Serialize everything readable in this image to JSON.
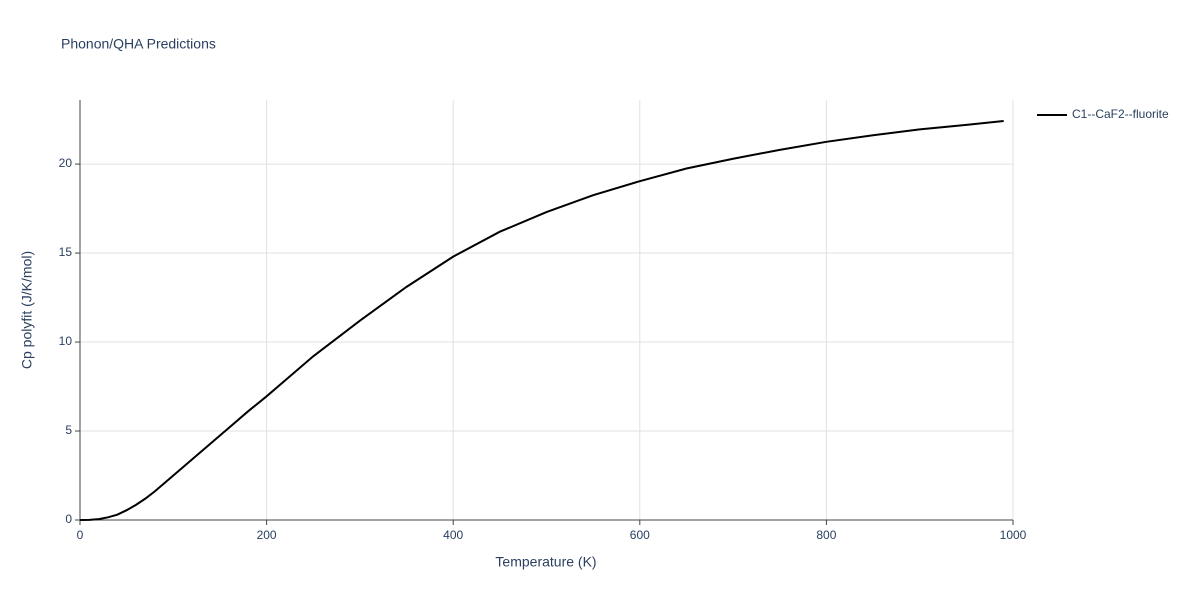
{
  "chart_data": {
    "type": "line",
    "title": "Phonon/QHA Predictions",
    "x_label": "Temperature (K)",
    "y_label": "Cp polyfit (J/K/mol)",
    "x": [
      0,
      10,
      20,
      30,
      40,
      50,
      60,
      70,
      80,
      90,
      100,
      120,
      140,
      160,
      180,
      200,
      250,
      300,
      350,
      400,
      450,
      500,
      550,
      600,
      650,
      700,
      750,
      800,
      850,
      900,
      950,
      990
    ],
    "series": [
      {
        "name": "C1--CaF2--fluorite",
        "color": "#000000",
        "values": [
          0,
          0.01,
          0.05,
          0.15,
          0.3,
          0.55,
          0.85,
          1.2,
          1.6,
          2.05,
          2.5,
          3.4,
          4.3,
          5.2,
          6.1,
          6.95,
          9.2,
          11.2,
          13.1,
          14.8,
          16.2,
          17.3,
          18.25,
          19.04,
          19.75,
          20.3,
          20.8,
          21.25,
          21.62,
          21.95,
          22.2,
          22.42
        ]
      }
    ],
    "xlim": [
      0,
      1000
    ],
    "xticks": [
      0,
      200,
      400,
      600,
      800,
      1000
    ],
    "ylim": [
      0,
      23.6
    ],
    "yticks": [
      0,
      5,
      10,
      15,
      20
    ],
    "grid": true,
    "legend": "right"
  }
}
